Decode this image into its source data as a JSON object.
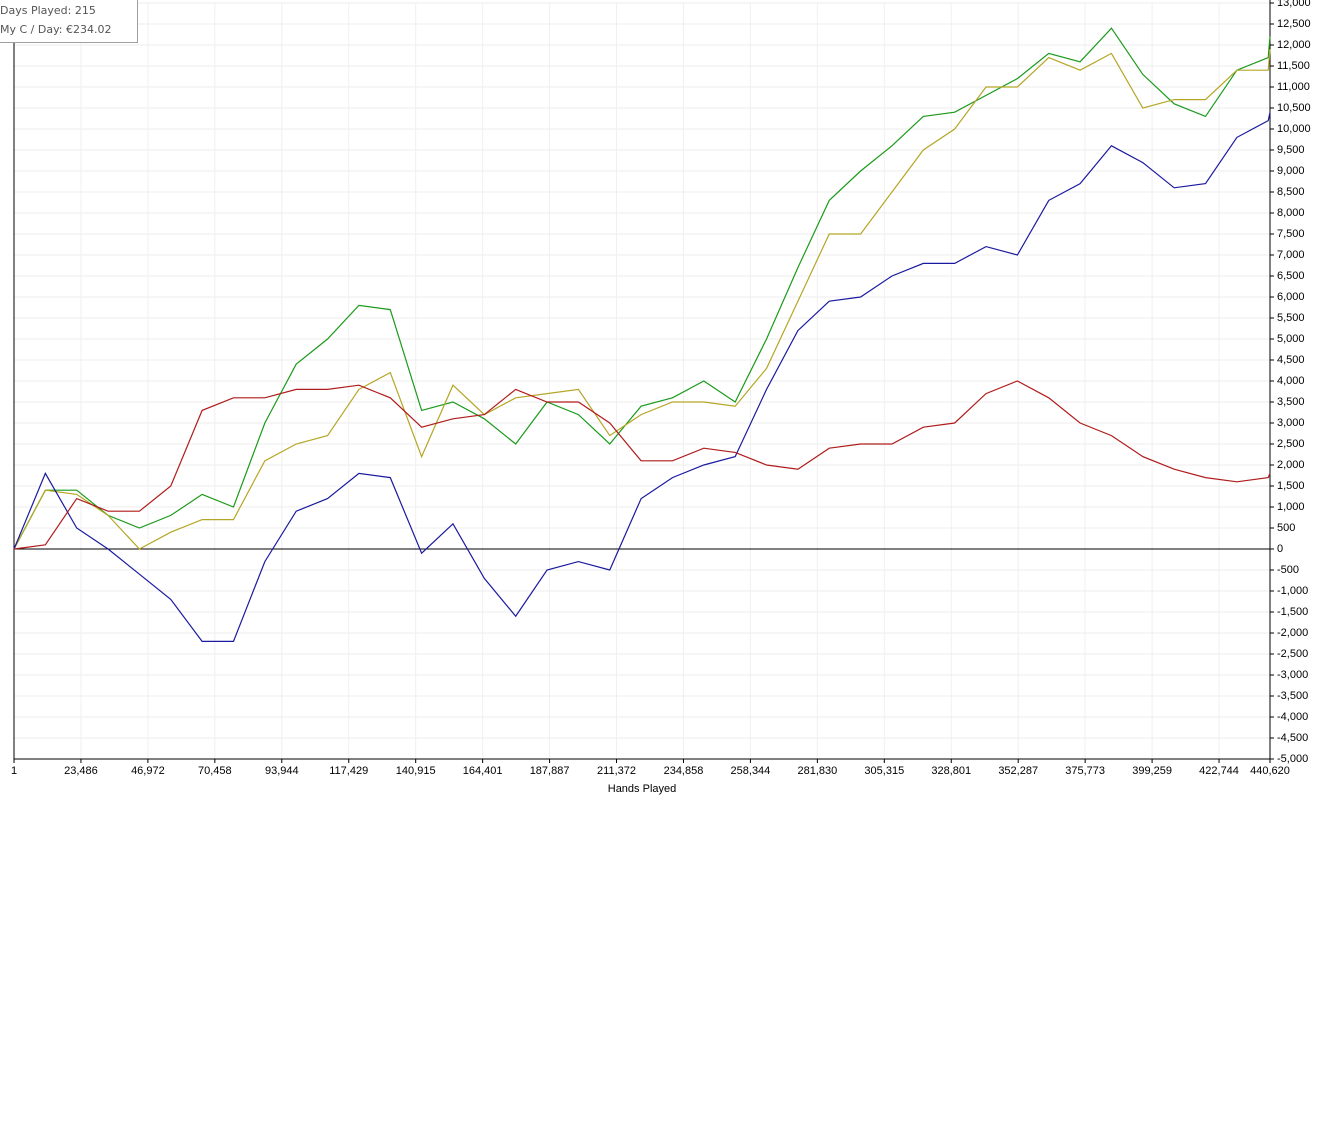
{
  "chart_data": {
    "type": "line",
    "annotations": [
      "Days Played: 215",
      "My C / Day: €234.02"
    ],
    "x_label": "Hands Played",
    "x": [
      1,
      11000,
      22000,
      33000,
      44000,
      55000,
      66000,
      77000,
      88000,
      99000,
      110000,
      121000,
      132000,
      143000,
      154000,
      165000,
      176000,
      187000,
      198000,
      209000,
      220000,
      231000,
      242000,
      253000,
      264000,
      275000,
      286000,
      297000,
      308000,
      319000,
      330000,
      341000,
      352000,
      363000,
      374000,
      385000,
      396000,
      407000,
      418000,
      429000,
      440000,
      440620
    ],
    "series": [
      {
        "color": "#1a9a1a",
        "values": [
          0,
          1400,
          1400,
          800,
          500,
          800,
          1300,
          1000,
          3000,
          4400,
          5000,
          5800,
          5700,
          3300,
          3500,
          3100,
          2500,
          3500,
          3200,
          2500,
          3400,
          3600,
          4000,
          3500,
          5000,
          6700,
          8300,
          9000,
          9600,
          10300,
          10400,
          10800,
          11200,
          11800,
          11600,
          12400,
          11300,
          10600,
          10300,
          11400,
          11700,
          12200
        ]
      },
      {
        "color": "#b5a626",
        "values": [
          0,
          1400,
          1300,
          800,
          0,
          400,
          700,
          700,
          2100,
          2500,
          2700,
          3800,
          4200,
          2200,
          3900,
          3200,
          3600,
          3700,
          3800,
          2700,
          3200,
          3500,
          3500,
          3400,
          4300,
          5900,
          7500,
          7500,
          8500,
          9500,
          10000,
          11000,
          11000,
          11700,
          11400,
          11800,
          10500,
          10700,
          10700,
          11400,
          11400,
          11900
        ]
      },
      {
        "color": "#1a1aa0",
        "values": [
          0,
          1800,
          500,
          0,
          -600,
          -1200,
          -2200,
          -2200,
          -300,
          900,
          1200,
          1800,
          1700,
          -100,
          600,
          -700,
          -1600,
          -500,
          -300,
          -500,
          1200,
          1700,
          2000,
          2200,
          3800,
          5200,
          5900,
          6000,
          6500,
          6800,
          6800,
          7200,
          7000,
          8300,
          8700,
          9600,
          9200,
          8600,
          8700,
          9800,
          10200,
          10400
        ]
      },
      {
        "color": "#b01c1c",
        "values": [
          0,
          100,
          1200,
          900,
          900,
          1500,
          3300,
          3600,
          3600,
          3800,
          3800,
          3900,
          3600,
          2900,
          3100,
          3200,
          3800,
          3500,
          3500,
          3000,
          2100,
          2100,
          2400,
          2300,
          2000,
          1900,
          2400,
          2500,
          2500,
          2900,
          3000,
          3700,
          4000,
          3600,
          3000,
          2700,
          2200,
          1900,
          1700,
          1600,
          1700,
          1800
        ]
      }
    ],
    "xlim": [
      1,
      440620
    ],
    "xticks": [
      1,
      {
        "value": 23486,
        "label": "23,486"
      },
      {
        "value": 46972,
        "label": "46,972"
      },
      {
        "value": 70458,
        "label": "70,458"
      },
      {
        "value": 93944,
        "label": "93,944"
      },
      {
        "value": 117429,
        "label": "117,429"
      },
      {
        "value": 140915,
        "label": "140,915"
      },
      {
        "value": 164401,
        "label": "164,401"
      },
      {
        "value": 187887,
        "label": "187,887"
      },
      {
        "value": 211372,
        "label": "211,372"
      },
      {
        "value": 234858,
        "label": "234,858"
      },
      {
        "value": 258344,
        "label": "258,344"
      },
      {
        "value": 281830,
        "label": "281,830"
      },
      {
        "value": 305315,
        "label": "305,315"
      },
      {
        "value": 328801,
        "label": "328,801"
      },
      {
        "value": 352287,
        "label": "352,287"
      },
      {
        "value": 375773,
        "label": "375,773"
      },
      {
        "value": 399259,
        "label": "399,259"
      },
      {
        "value": 422744,
        "label": "422,744"
      },
      {
        "value": 440620,
        "label": "440,620"
      }
    ],
    "ylim": [
      -5000,
      13000
    ],
    "yticks": [
      {
        "value": -5000,
        "label": "-5,000"
      },
      {
        "value": -4500,
        "label": "-4,500"
      },
      {
        "value": -4000,
        "label": "-4,000"
      },
      {
        "value": -3500,
        "label": "-3,500"
      },
      {
        "value": -3000,
        "label": "-3,000"
      },
      {
        "value": -2500,
        "label": "-2,500"
      },
      {
        "value": -2000,
        "label": "-2,000"
      },
      {
        "value": -1500,
        "label": "-1,500"
      },
      {
        "value": -1000,
        "label": "-1,000"
      },
      -500,
      0,
      500,
      {
        "value": 1000,
        "label": "1,000"
      },
      {
        "value": 1500,
        "label": "1,500"
      },
      {
        "value": 2000,
        "label": "2,000"
      },
      {
        "value": 2500,
        "label": "2,500"
      },
      {
        "value": 3000,
        "label": "3,000"
      },
      {
        "value": 3500,
        "label": "3,500"
      },
      {
        "value": 4000,
        "label": "4,000"
      },
      {
        "value": 4500,
        "label": "4,500"
      },
      {
        "value": 5000,
        "label": "5,000"
      },
      {
        "value": 5500,
        "label": "5,500"
      },
      {
        "value": 6000,
        "label": "6,000"
      },
      {
        "value": 6500,
        "label": "6,500"
      },
      {
        "value": 7000,
        "label": "7,000"
      },
      {
        "value": 7500,
        "label": "7,500"
      },
      {
        "value": 8000,
        "label": "8,000"
      },
      {
        "value": 8500,
        "label": "8,500"
      },
      {
        "value": 9000,
        "label": "9,000"
      },
      {
        "value": 9500,
        "label": "9,500"
      },
      {
        "value": 10000,
        "label": "10,000"
      },
      {
        "value": 10500,
        "label": "10,500"
      },
      {
        "value": 11000,
        "label": "11,000"
      },
      {
        "value": 11500,
        "label": "11,500"
      },
      {
        "value": 12000,
        "label": "12,000"
      },
      {
        "value": 12500,
        "label": "12,500"
      },
      {
        "value": 13000,
        "label": "13,000"
      }
    ],
    "grid": true
  }
}
